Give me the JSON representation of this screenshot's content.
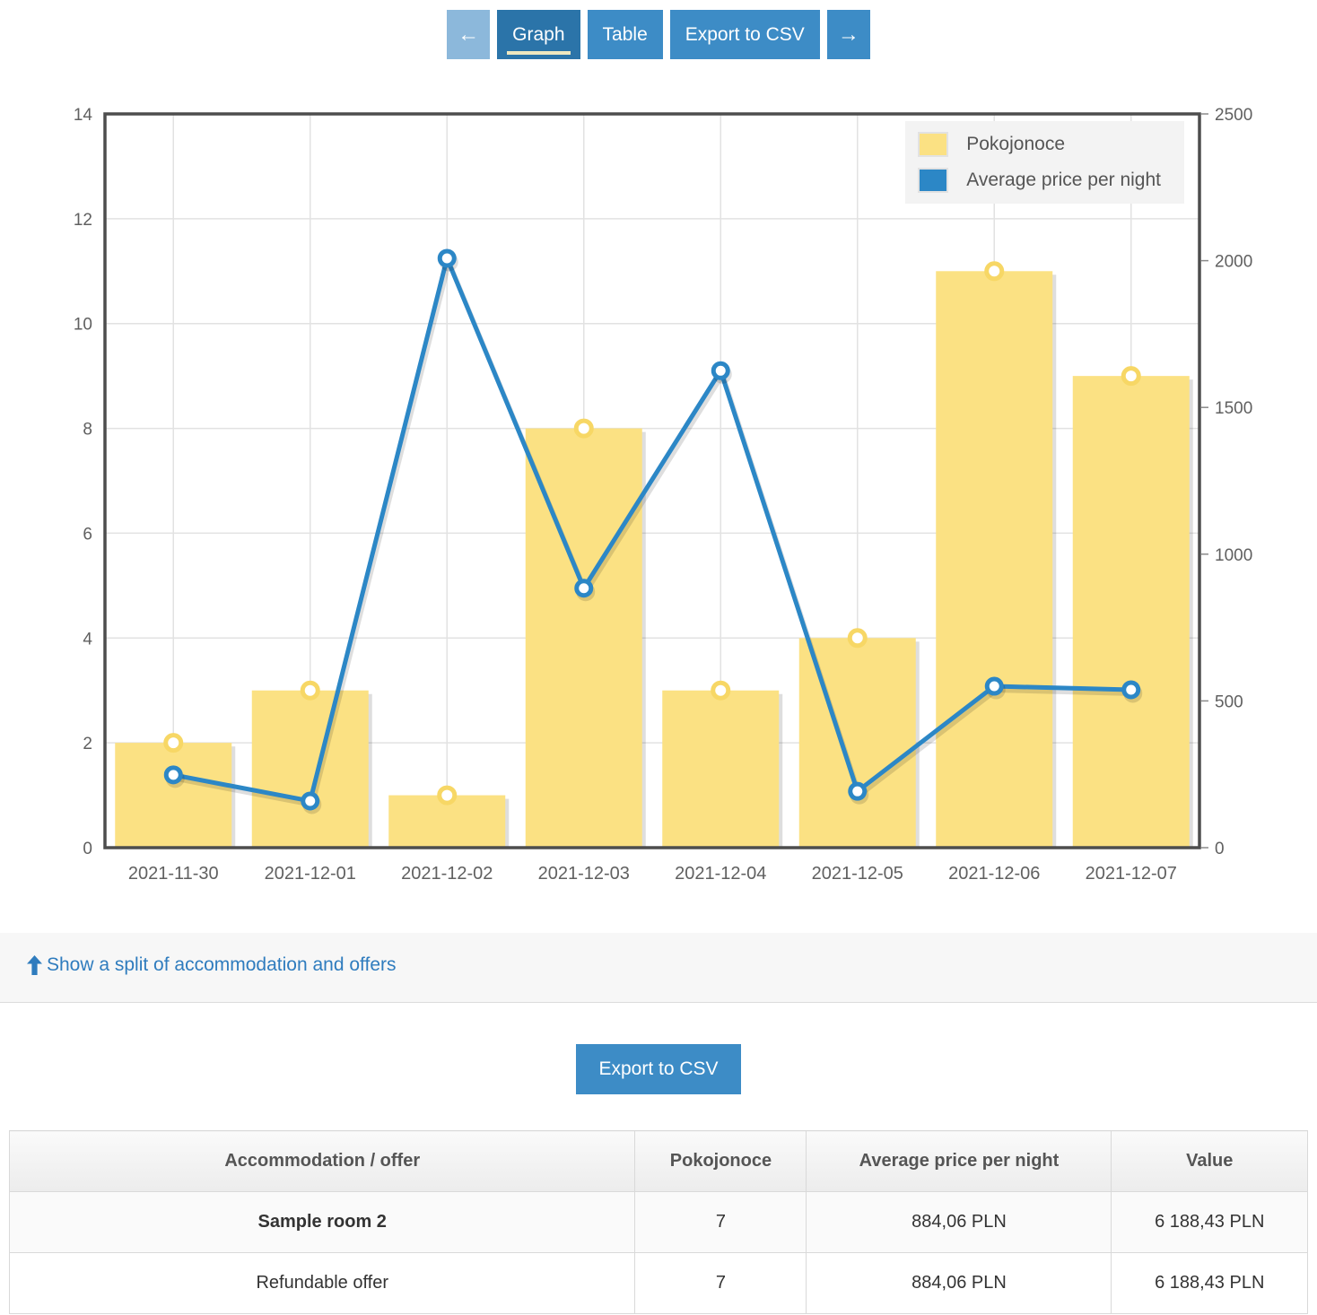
{
  "toolbar": {
    "prev_icon": "←",
    "next_icon": "→",
    "graph_label": "Graph",
    "table_label": "Table",
    "export_label": "Export to CSV"
  },
  "chart_data": {
    "type": "bar",
    "subtype": "bar-line-combo",
    "categories": [
      "2021-11-30",
      "2021-12-01",
      "2021-12-02",
      "2021-12-03",
      "2021-12-04",
      "2021-12-05",
      "2021-12-06",
      "2021-12-07"
    ],
    "series": [
      {
        "name": "Pokojonoce",
        "type": "bar",
        "axis": "left",
        "color": "#FBE183",
        "marker_color": "#F7D765",
        "values": [
          2,
          3,
          1,
          8,
          3,
          4,
          11,
          9
        ]
      },
      {
        "name": "Average price per night",
        "type": "line",
        "axis": "right",
        "color": "#2C87C6",
        "marker_color": "#2C87C6",
        "values": [
          248,
          159,
          2008,
          884,
          1625,
          192,
          550,
          538
        ]
      }
    ],
    "left_axis": {
      "min": 0,
      "max": 14,
      "step": 2
    },
    "right_axis": {
      "min": 0,
      "max": 2500,
      "step": 500
    },
    "grid": true,
    "legend_position": "top-right",
    "title": "",
    "xlabel": "",
    "ylabel": ""
  },
  "chart_style": {
    "grid_color": "#E2E2E2",
    "border_color": "#4D4D4D",
    "tick_text_color": "#606060",
    "shadow_color": "rgba(0,0,0,0.13)"
  },
  "split_link": {
    "text": "Show a split of accommodation and offers"
  },
  "export_button": {
    "label": "Export to CSV"
  },
  "table": {
    "headers": [
      "Accommodation / offer",
      "Pokojonoce",
      "Average price per night",
      "Value"
    ],
    "col_widths": [
      "48.2%",
      "13.2%",
      "23.5%",
      "15.1%"
    ],
    "rows": [
      {
        "bold_first": true,
        "cells": [
          "Sample room 2",
          "7",
          "884,06 PLN",
          "6 188,43 PLN"
        ]
      },
      {
        "bold_first": false,
        "cells": [
          "Refundable offer",
          "7",
          "884,06 PLN",
          "6 188,43 PLN"
        ]
      }
    ]
  }
}
